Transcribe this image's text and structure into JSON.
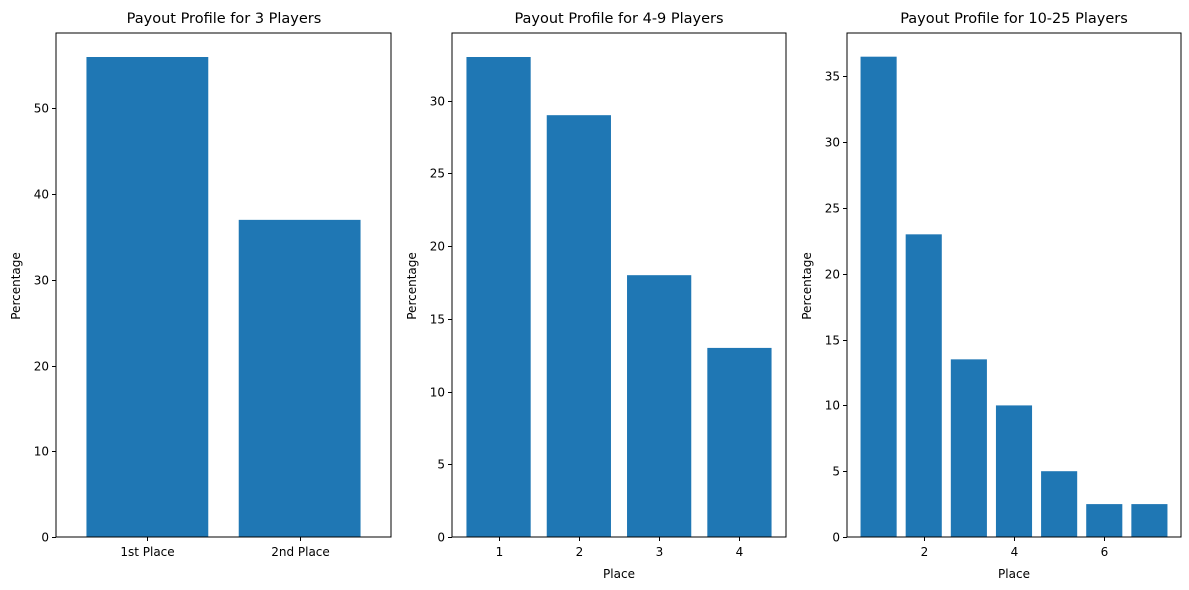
{
  "colors": {
    "bar": "#1f77b4",
    "axis": "#000000",
    "background": "#ffffff"
  },
  "chart_data": [
    {
      "type": "bar",
      "title": "Payout Profile for 3 Players",
      "xlabel": "",
      "ylabel": "Percentage",
      "categories": [
        "1st Place",
        "2nd Place"
      ],
      "values": [
        56,
        37
      ],
      "ylim": [
        0,
        58.8
      ],
      "yticks": [
        0,
        10,
        20,
        30,
        40,
        50
      ],
      "xaxis": "categorical",
      "grid": false,
      "legend": "none"
    },
    {
      "type": "bar",
      "title": "Payout Profile for 4-9 Players",
      "xlabel": "Place",
      "ylabel": "Percentage",
      "x": [
        1,
        2,
        3,
        4
      ],
      "values": [
        33,
        29,
        18,
        13
      ],
      "ylim": [
        0,
        34.65
      ],
      "yticks": [
        0,
        5,
        10,
        15,
        20,
        25,
        30
      ],
      "xlim": [
        0.42,
        4.58
      ],
      "xticks": [
        1,
        2,
        3,
        4
      ],
      "xaxis": "numeric",
      "grid": false,
      "legend": "none"
    },
    {
      "type": "bar",
      "title": "Payout Profile for 10-25 Players",
      "xlabel": "Place",
      "ylabel": "Percentage",
      "x": [
        1,
        2,
        3,
        4,
        5,
        6,
        7
      ],
      "values": [
        36.5,
        23,
        13.5,
        10,
        5,
        2.5,
        2.5
      ],
      "ylim": [
        0,
        38.3
      ],
      "yticks": [
        0,
        5,
        10,
        15,
        20,
        25,
        30,
        35
      ],
      "xlim": [
        0.3,
        7.7
      ],
      "xticks": [
        2,
        4,
        6
      ],
      "xaxis": "numeric",
      "grid": false,
      "legend": "none"
    }
  ]
}
